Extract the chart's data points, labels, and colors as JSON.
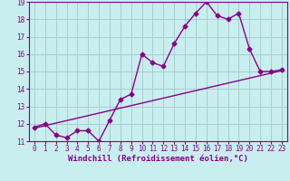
{
  "xlabel": "Windchill (Refroidissement éolien,°C)",
  "ylabel": "",
  "xlim": [
    -0.5,
    23.5
  ],
  "ylim": [
    11,
    19
  ],
  "xticks": [
    0,
    1,
    2,
    3,
    4,
    5,
    6,
    7,
    8,
    9,
    10,
    11,
    12,
    13,
    14,
    15,
    16,
    17,
    18,
    19,
    20,
    21,
    22,
    23
  ],
  "yticks": [
    11,
    12,
    13,
    14,
    15,
    16,
    17,
    18,
    19
  ],
  "bg_color": "#c8eef0",
  "grid_color": "#aacccc",
  "line_color": "#880088",
  "data_line": {
    "x": [
      0,
      1,
      2,
      3,
      4,
      5,
      6,
      7,
      8,
      9,
      10,
      11,
      12,
      13,
      14,
      15,
      16,
      17,
      18,
      19,
      20,
      21,
      22,
      23
    ],
    "y": [
      11.8,
      12.0,
      11.35,
      11.2,
      11.6,
      11.6,
      11.0,
      12.2,
      13.4,
      13.7,
      16.0,
      15.5,
      15.3,
      16.6,
      17.6,
      18.35,
      19.0,
      18.2,
      18.0,
      18.35,
      16.3,
      15.0,
      15.0,
      15.1
    ]
  },
  "trend_line": {
    "x": [
      0,
      23
    ],
    "y": [
      11.75,
      15.05
    ]
  },
  "marker": "D",
  "marker_size": 2.5,
  "line_width": 1.0,
  "font_family": "monospace",
  "tick_fontsize": 5.5,
  "xlabel_fontsize": 6.5
}
